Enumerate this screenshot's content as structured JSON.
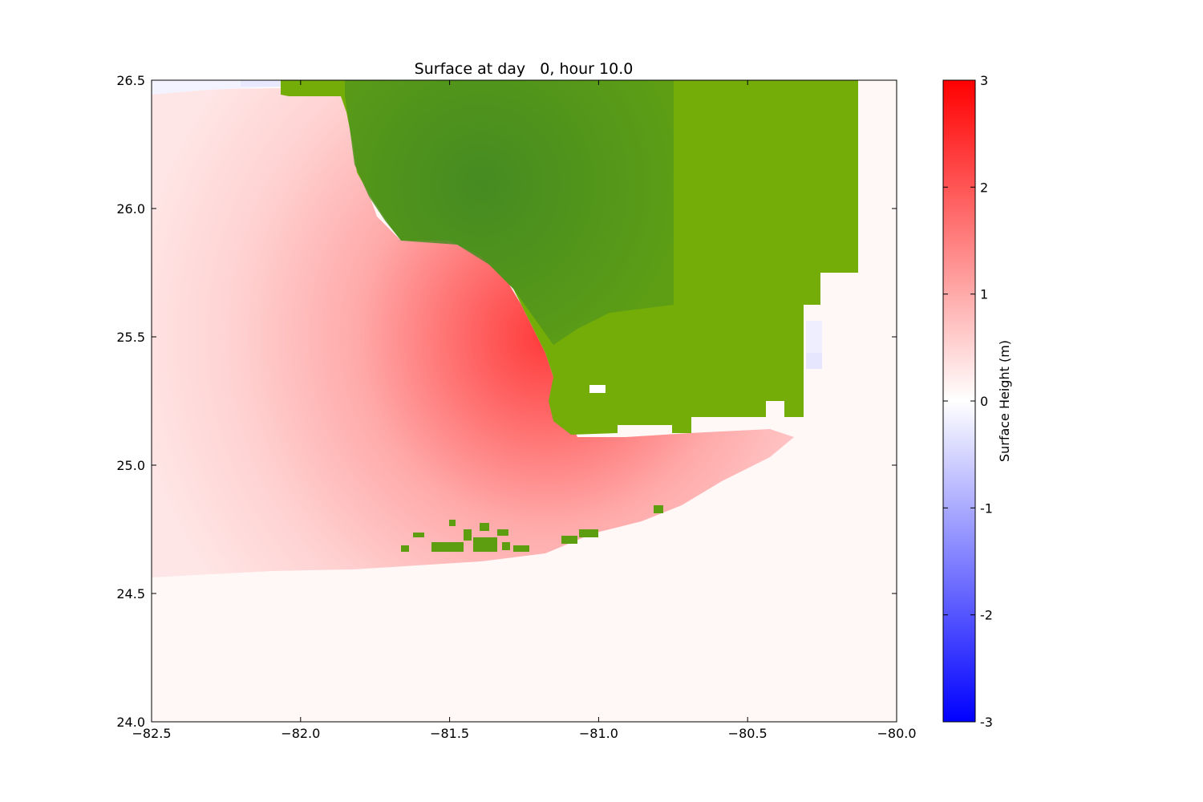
{
  "chart_data": {
    "type": "heatmap",
    "title": "Surface at day   0, hour 10.0",
    "xlim": [
      -82.5,
      -80.0
    ],
    "ylim": [
      24.0,
      26.5
    ],
    "xticks": [
      -82.5,
      -82.0,
      -81.5,
      -81.0,
      -80.5,
      -80.0
    ],
    "xtick_labels": [
      "−82.5",
      "−82.0",
      "−81.5",
      "−81.0",
      "−80.5",
      "−80.0"
    ],
    "yticks": [
      24.0,
      24.5,
      25.0,
      25.5,
      26.0,
      26.5
    ],
    "ytick_labels": [
      "24.0",
      "24.5",
      "25.0",
      "25.5",
      "26.0",
      "26.5"
    ],
    "colorbar": {
      "label": "Surface Height (m)",
      "range": [
        -3,
        3
      ],
      "ticks": [
        3,
        2,
        1,
        0,
        -1,
        -2,
        -3
      ],
      "tick_labels": [
        "3",
        "2",
        "1",
        "0",
        "-1",
        "-2",
        "-3"
      ],
      "colormap": "bwr",
      "colors": {
        "low": "#0000ff",
        "mid": "#ffffff",
        "high": "#ff0000"
      }
    },
    "land_color": "#6aa50a",
    "land_dark_color": "#3f8a23",
    "surge_peak_m": 2.2,
    "surge_peak_location": {
      "lon": -81.3,
      "lat": 25.6
    },
    "open_water_level_m": 0.05,
    "grid": false
  }
}
